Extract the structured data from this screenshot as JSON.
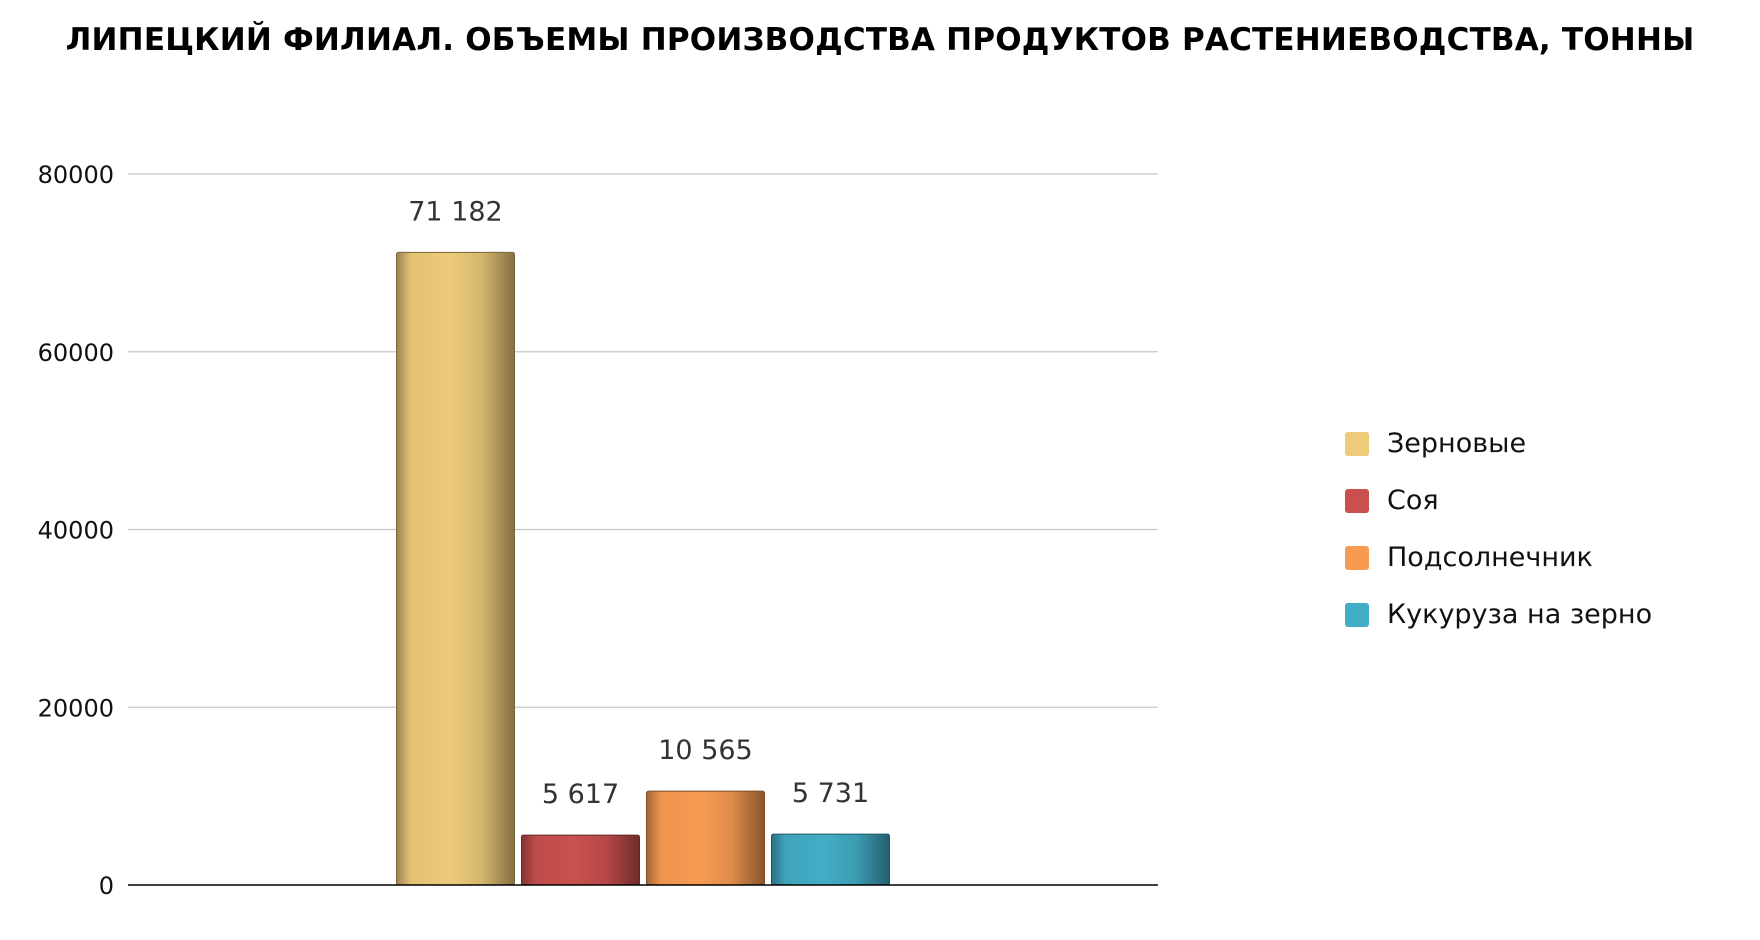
{
  "chart_data": {
    "type": "bar",
    "title": "ЛИПЕЦКИЙ ФИЛИАЛ. ОБЪЕМЫ ПРОИЗВОДСТВА ПРОДУКТОВ РАСТЕНИЕВОДСТВА, ТОННЫ",
    "xlabel": "",
    "ylabel": "",
    "ylim": [
      0,
      80000
    ],
    "yticks": [
      0,
      20000,
      40000,
      60000,
      80000
    ],
    "ytick_labels": [
      "0",
      "20000",
      "40000",
      "60000",
      "80000"
    ],
    "grid": true,
    "legend_position": "right",
    "categories": [
      ""
    ],
    "series": [
      {
        "name": "Зерновые",
        "values": [
          71182
        ],
        "value_label": "71 182",
        "color": "#EECB7A"
      },
      {
        "name": "Соя",
        "values": [
          5617
        ],
        "value_label": "5 617",
        "color": "#C9504F"
      },
      {
        "name": "Подсолнечник",
        "values": [
          10565
        ],
        "value_label": "10 565",
        "color": "#F89B52"
      },
      {
        "name": "Кукуруза на зерно",
        "values": [
          5731
        ],
        "value_label": "5 731",
        "color": "#42ADC6"
      }
    ]
  }
}
